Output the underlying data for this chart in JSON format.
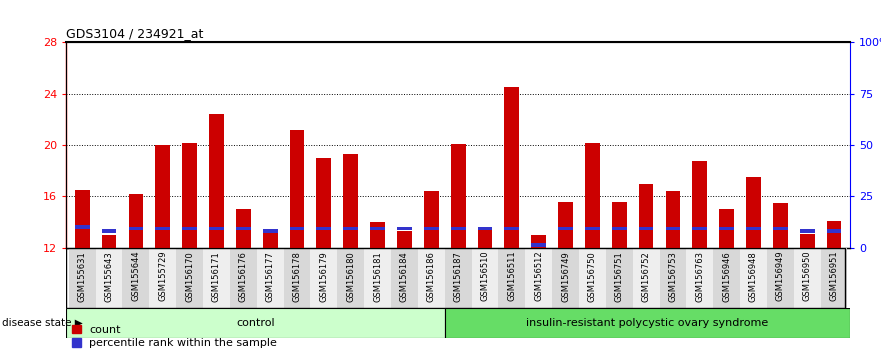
{
  "title": "GDS3104 / 234921_at",
  "samples": [
    "GSM155631",
    "GSM155643",
    "GSM155644",
    "GSM155729",
    "GSM156170",
    "GSM156171",
    "GSM156176",
    "GSM156177",
    "GSM156178",
    "GSM156179",
    "GSM156180",
    "GSM156181",
    "GSM156184",
    "GSM156186",
    "GSM156187",
    "GSM156510",
    "GSM156511",
    "GSM156512",
    "GSM156749",
    "GSM156750",
    "GSM156751",
    "GSM156752",
    "GSM156753",
    "GSM156763",
    "GSM156946",
    "GSM156948",
    "GSM156949",
    "GSM156950",
    "GSM156951"
  ],
  "count_values": [
    16.5,
    13.0,
    16.2,
    20.0,
    20.2,
    22.4,
    15.0,
    13.3,
    21.2,
    19.0,
    19.3,
    14.0,
    13.3,
    16.4,
    20.1,
    13.5,
    24.5,
    13.0,
    15.6,
    20.2,
    15.6,
    17.0,
    16.4,
    18.8,
    15.0,
    17.5,
    15.5,
    13.1,
    14.1
  ],
  "percentile_values": [
    13.6,
    13.3,
    13.5,
    13.5,
    13.5,
    13.5,
    13.5,
    13.3,
    13.5,
    13.5,
    13.5,
    13.5,
    13.5,
    13.5,
    13.5,
    13.5,
    13.5,
    12.2,
    13.5,
    13.5,
    13.5,
    13.5,
    13.5,
    13.5,
    13.5,
    13.5,
    13.5,
    13.3,
    13.3
  ],
  "control_count": 14,
  "disease_count": 15,
  "control_label": "control",
  "disease_label": "insulin-resistant polycystic ovary syndrome",
  "disease_state_label": "disease state",
  "ymin": 12,
  "ymax": 28,
  "yticks_left": [
    12,
    16,
    20,
    24,
    28
  ],
  "yticks_right": [
    0,
    25,
    50,
    75,
    100
  ],
  "bar_color": "#cc0000",
  "blue_color": "#3333cc",
  "control_bg": "#ccffcc",
  "disease_bg": "#66dd66",
  "bar_width": 0.55,
  "legend_count_label": "count",
  "legend_pct_label": "percentile rank within the sample",
  "grid_color": "black",
  "bg_color": "#ffffff",
  "tick_bg_odd": "#d8d8d8",
  "tick_bg_even": "#eeeeee"
}
